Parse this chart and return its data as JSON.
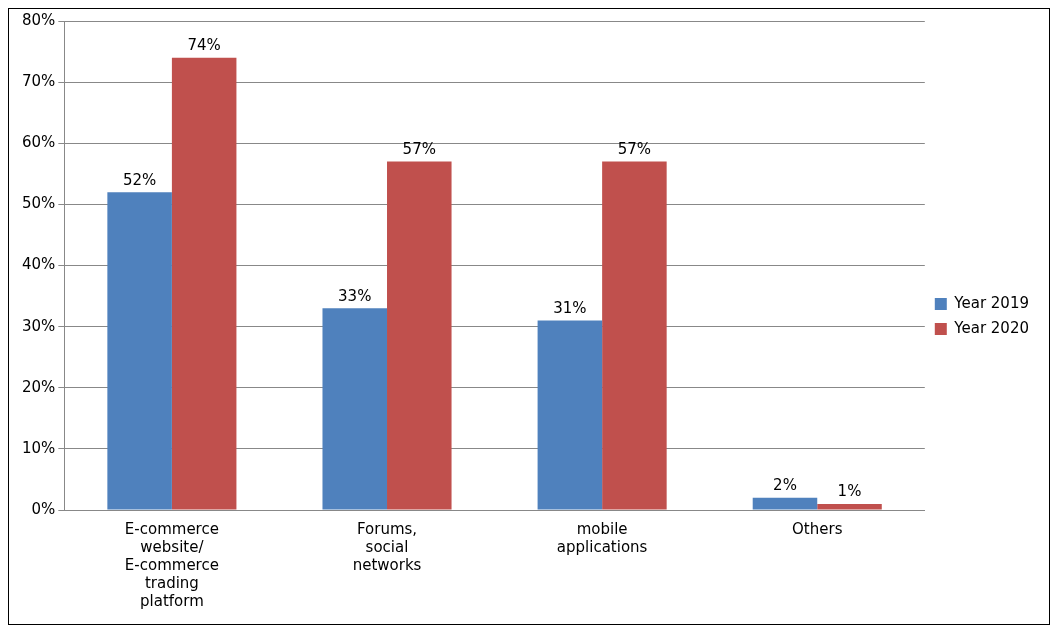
{
  "chart_data": {
    "type": "bar",
    "categories": [
      "E-commerce website/ E-commerce trading platform",
      "Forums, social networks",
      "mobile applications",
      "Others"
    ],
    "series": [
      {
        "name": "Year 2019",
        "color": "#4f81bd",
        "values": [
          52,
          33,
          31,
          2
        ],
        "value_labels": [
          "52%",
          "33%",
          "31%",
          "2%"
        ]
      },
      {
        "name": "Year 2020",
        "color": "#c0504d",
        "values": [
          74,
          57,
          57,
          1
        ],
        "value_labels": [
          "74%",
          "57%",
          "57%",
          "1%"
        ]
      }
    ],
    "ylim": [
      0,
      80
    ],
    "yticks": [
      {
        "value": 0,
        "label": "0%"
      },
      {
        "value": 10,
        "label": "10%"
      },
      {
        "value": 20,
        "label": "20%"
      },
      {
        "value": 30,
        "label": "30%"
      },
      {
        "value": 40,
        "label": "40%"
      },
      {
        "value": 50,
        "label": "50%"
      },
      {
        "value": 60,
        "label": "60%"
      },
      {
        "value": 70,
        "label": "70%"
      },
      {
        "value": 80,
        "label": "80%"
      }
    ],
    "grid": "y",
    "legend": "right"
  }
}
